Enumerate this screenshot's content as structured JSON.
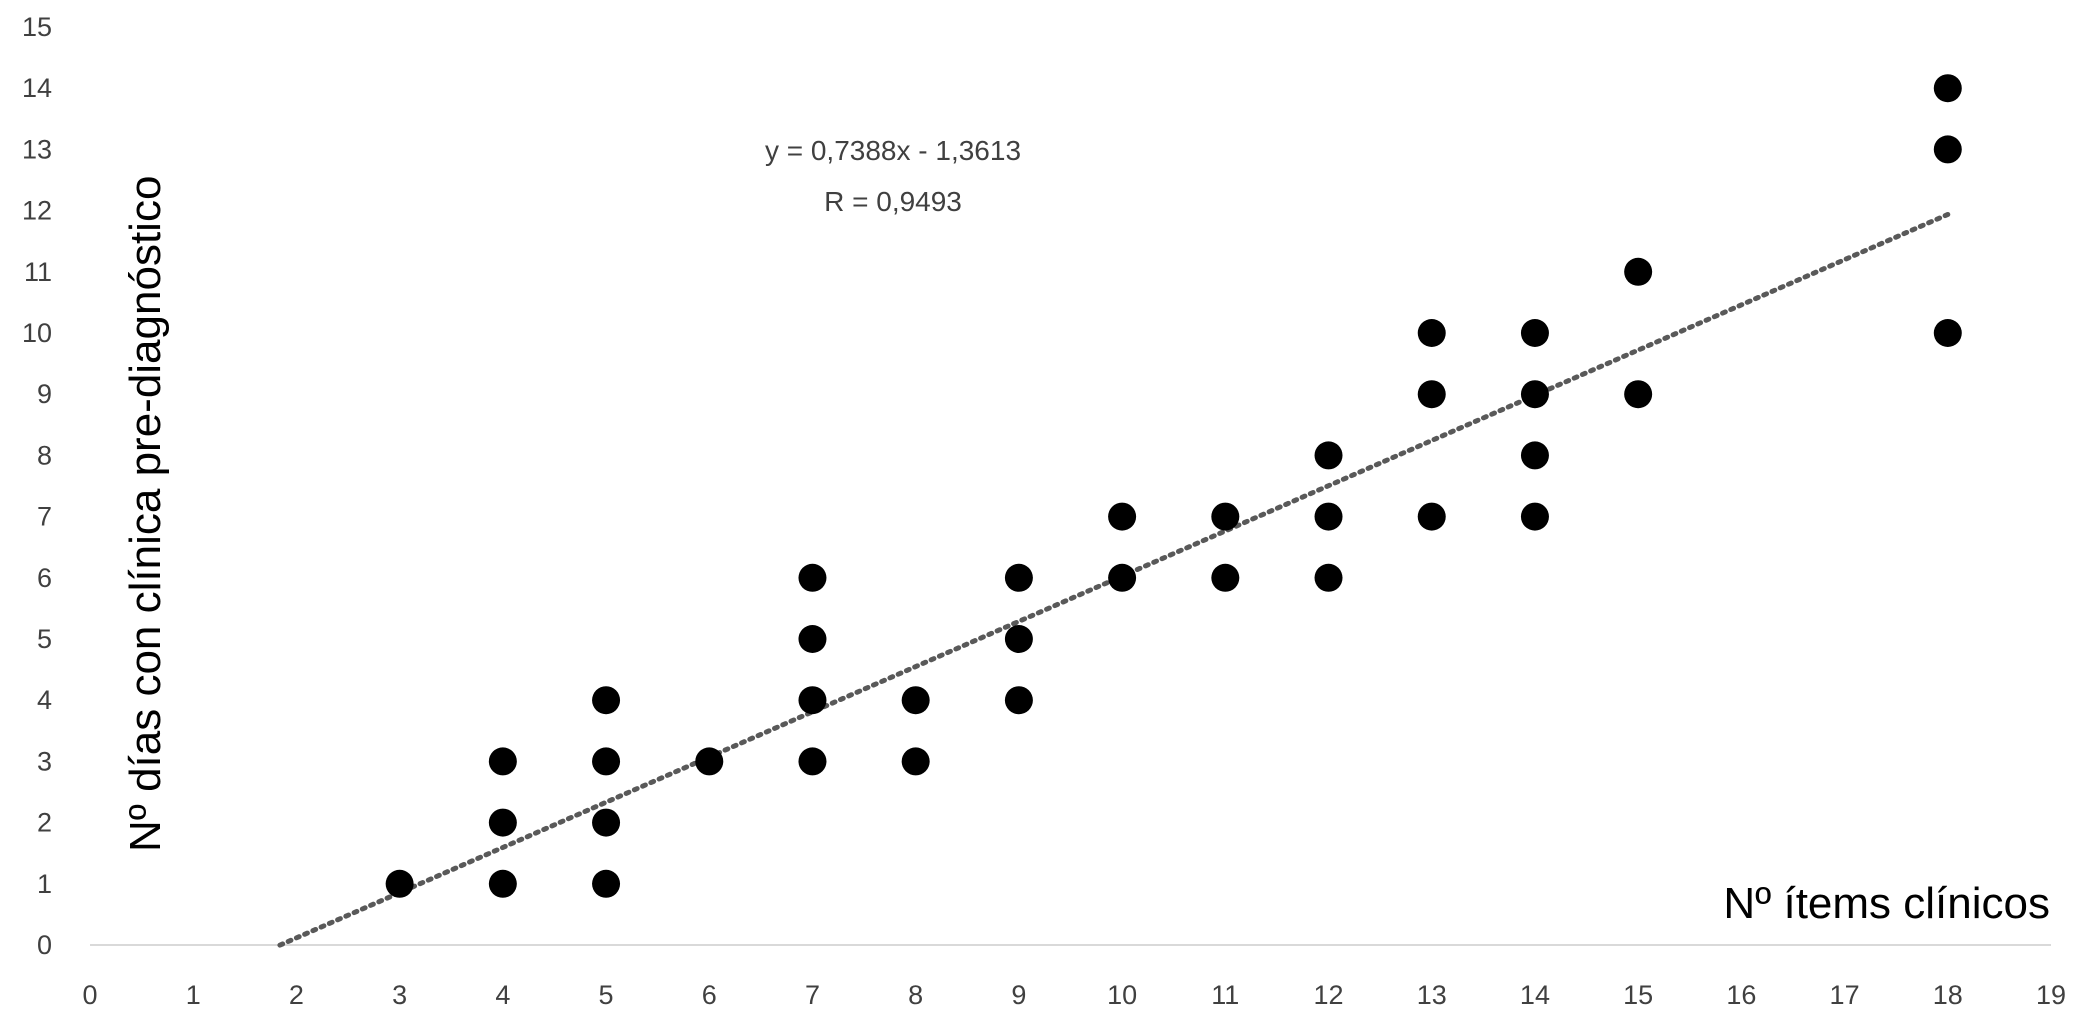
{
  "chart_data": {
    "type": "scatter",
    "title": "",
    "xlabel": "Nº ítems clínicos",
    "ylabel": "Nº días con clínica pre-diagnóstico",
    "xlim": [
      0,
      19
    ],
    "ylim": [
      0,
      15
    ],
    "x_ticks": [
      "0",
      "1",
      "2",
      "3",
      "4",
      "5",
      "6",
      "7",
      "8",
      "9",
      "10",
      "11",
      "12",
      "13",
      "14",
      "15",
      "16",
      "17",
      "18",
      "19"
    ],
    "y_ticks": [
      "0",
      "1",
      "2",
      "3",
      "4",
      "5",
      "6",
      "7",
      "8",
      "9",
      "10",
      "11",
      "12",
      "13",
      "14",
      "15"
    ],
    "grid": false,
    "legend": "none",
    "marker_color": "#000000",
    "trendline_color": "#595959",
    "series": [
      {
        "values": [
          {
            "x": 3,
            "y": 1
          },
          {
            "x": 4,
            "y": 1
          },
          {
            "x": 4,
            "y": 2
          },
          {
            "x": 4,
            "y": 3
          },
          {
            "x": 5,
            "y": 1
          },
          {
            "x": 5,
            "y": 2
          },
          {
            "x": 5,
            "y": 3
          },
          {
            "x": 5,
            "y": 4
          },
          {
            "x": 6,
            "y": 3
          },
          {
            "x": 7,
            "y": 3
          },
          {
            "x": 7,
            "y": 4
          },
          {
            "x": 7,
            "y": 5
          },
          {
            "x": 7,
            "y": 6
          },
          {
            "x": 8,
            "y": 3
          },
          {
            "x": 8,
            "y": 4
          },
          {
            "x": 9,
            "y": 4
          },
          {
            "x": 9,
            "y": 5
          },
          {
            "x": 9,
            "y": 6
          },
          {
            "x": 10,
            "y": 6
          },
          {
            "x": 10,
            "y": 7
          },
          {
            "x": 11,
            "y": 6
          },
          {
            "x": 11,
            "y": 7
          },
          {
            "x": 12,
            "y": 6
          },
          {
            "x": 12,
            "y": 7
          },
          {
            "x": 12,
            "y": 8
          },
          {
            "x": 13,
            "y": 7
          },
          {
            "x": 13,
            "y": 9
          },
          {
            "x": 13,
            "y": 10
          },
          {
            "x": 14,
            "y": 7
          },
          {
            "x": 14,
            "y": 8
          },
          {
            "x": 14,
            "y": 9
          },
          {
            "x": 14,
            "y": 10
          },
          {
            "x": 15,
            "y": 9
          },
          {
            "x": 15,
            "y": 11
          },
          {
            "x": 18,
            "y": 10
          },
          {
            "x": 18,
            "y": 13
          },
          {
            "x": 18,
            "y": 14
          }
        ]
      }
    ],
    "trendline": {
      "slope": 0.7388,
      "intercept": -1.3613,
      "x_range": [
        1.84,
        18
      ],
      "equation_label": "y = 0,7388x - 1,3613",
      "r_label": "R = 0,9493"
    }
  }
}
